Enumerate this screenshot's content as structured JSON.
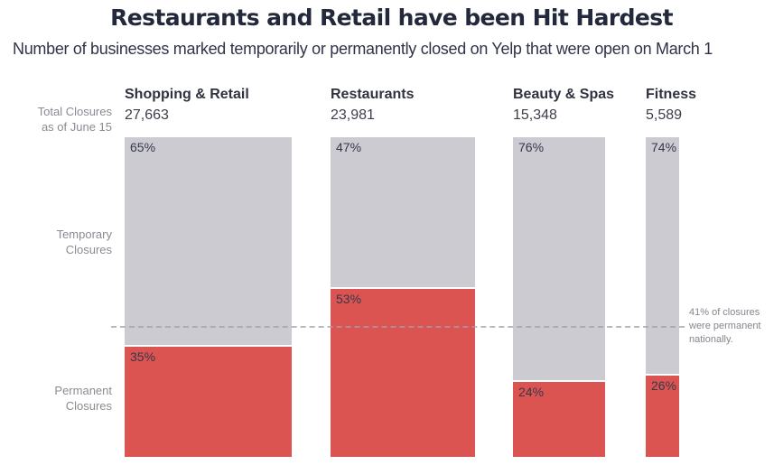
{
  "title": "Restaurants and Retail have been Hit Hardest",
  "subtitle": "Number of businesses marked temporarily or permanently closed on Yelp that were open on March 1",
  "side_labels": {
    "total": {
      "line1": "Total Closures",
      "line2": "as of June 15"
    },
    "temporary": {
      "line1": "Temporary",
      "line2": "Closures"
    },
    "permanent": {
      "line1": "Permanent",
      "line2": "Closures"
    }
  },
  "annotation": "41% of closures were permanent nationally.",
  "colors": {
    "temporary_bar": "#cccbd2",
    "permanent_bar": "#dc5452",
    "title_text": "#23283b",
    "muted_text": "#8b8b94",
    "pct_text": "#343849"
  },
  "chart_data": {
    "type": "bar",
    "subtype": "stacked-100pct-variable-width",
    "title": "Restaurants and Retail have been Hit Hardest",
    "subtitle": "Number of businesses marked temporarily or permanently closed on Yelp that were open on March 1",
    "categories": [
      "Shopping & Retail",
      "Restaurants",
      "Beauty & Spas",
      "Fitness"
    ],
    "totals": [
      27663,
      23981,
      15348,
      5589
    ],
    "totals_display": [
      "27,663",
      "23,981",
      "15,348",
      "5,589"
    ],
    "series": [
      {
        "name": "Temporary Closures",
        "values_pct": [
          65,
          47,
          76,
          74
        ],
        "color": "#cccbd2"
      },
      {
        "name": "Permanent Closures",
        "values_pct": [
          35,
          53,
          24,
          26
        ],
        "color": "#dc5452"
      }
    ],
    "reference_line": {
      "label": "41% of closures were permanent nationally.",
      "permanent_pct": 41
    },
    "layout_hints": {
      "bar_widths_proportional_to": "totals",
      "segment_order_top_to_bottom": [
        "Temporary Closures",
        "Permanent Closures"
      ],
      "value_labels": "percent shown at top-left inside each segment",
      "grid": false,
      "legend": "row labels on left side"
    }
  }
}
